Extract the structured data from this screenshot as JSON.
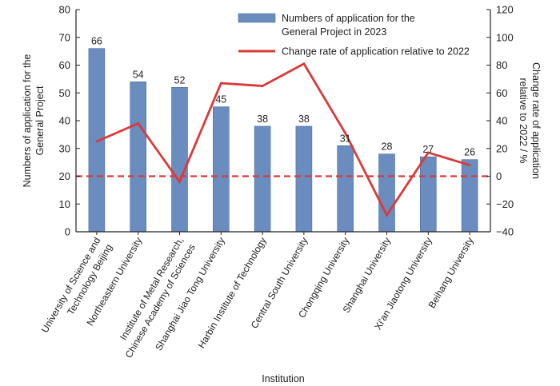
{
  "chart_data": {
    "type": "bar",
    "categories": [
      "University of Science and\nTechnology Beijing",
      "Northeastern University",
      "Institute of Metal Research,\nChinese Academy of Sciences",
      "Shanghai Jiao Tong University",
      "Harbin Institute of Technology",
      "Central South University",
      "Chongqing University",
      "Shanghai University",
      "Xi'an Jiaotong University",
      "Beihang University"
    ],
    "series": [
      {
        "name": "Numbers of application for the\nGeneral Project in 2023",
        "type": "bar",
        "axis": "left",
        "color": "#6a8cbf",
        "values": [
          66,
          54,
          52,
          45,
          38,
          38,
          31,
          28,
          27,
          26
        ]
      },
      {
        "name": "Change rate of application relative to 2022",
        "type": "line",
        "axis": "right",
        "color": "#d93a3a",
        "values": [
          25,
          38,
          -4,
          67,
          65,
          81,
          31,
          -28,
          17,
          8
        ]
      }
    ],
    "xlabel": "Institution",
    "ylabel_left": "Numbers of application for the\nGeneral Project",
    "ylabel_right": "Change rate of application\nrelative to 2022 / %",
    "ylim_left": [
      0,
      80
    ],
    "yticks_left": [
      0,
      10,
      20,
      30,
      40,
      50,
      60,
      70,
      80
    ],
    "ylim_right": [
      -40,
      120
    ],
    "yticks_right": [
      -40,
      -20,
      0,
      20,
      40,
      60,
      80,
      100,
      120
    ],
    "reference_line": {
      "axis": "right",
      "value": 0,
      "color": "#d93a3a",
      "style": "dashed"
    },
    "data_labels": true,
    "grid": false,
    "legend": "top-center"
  }
}
